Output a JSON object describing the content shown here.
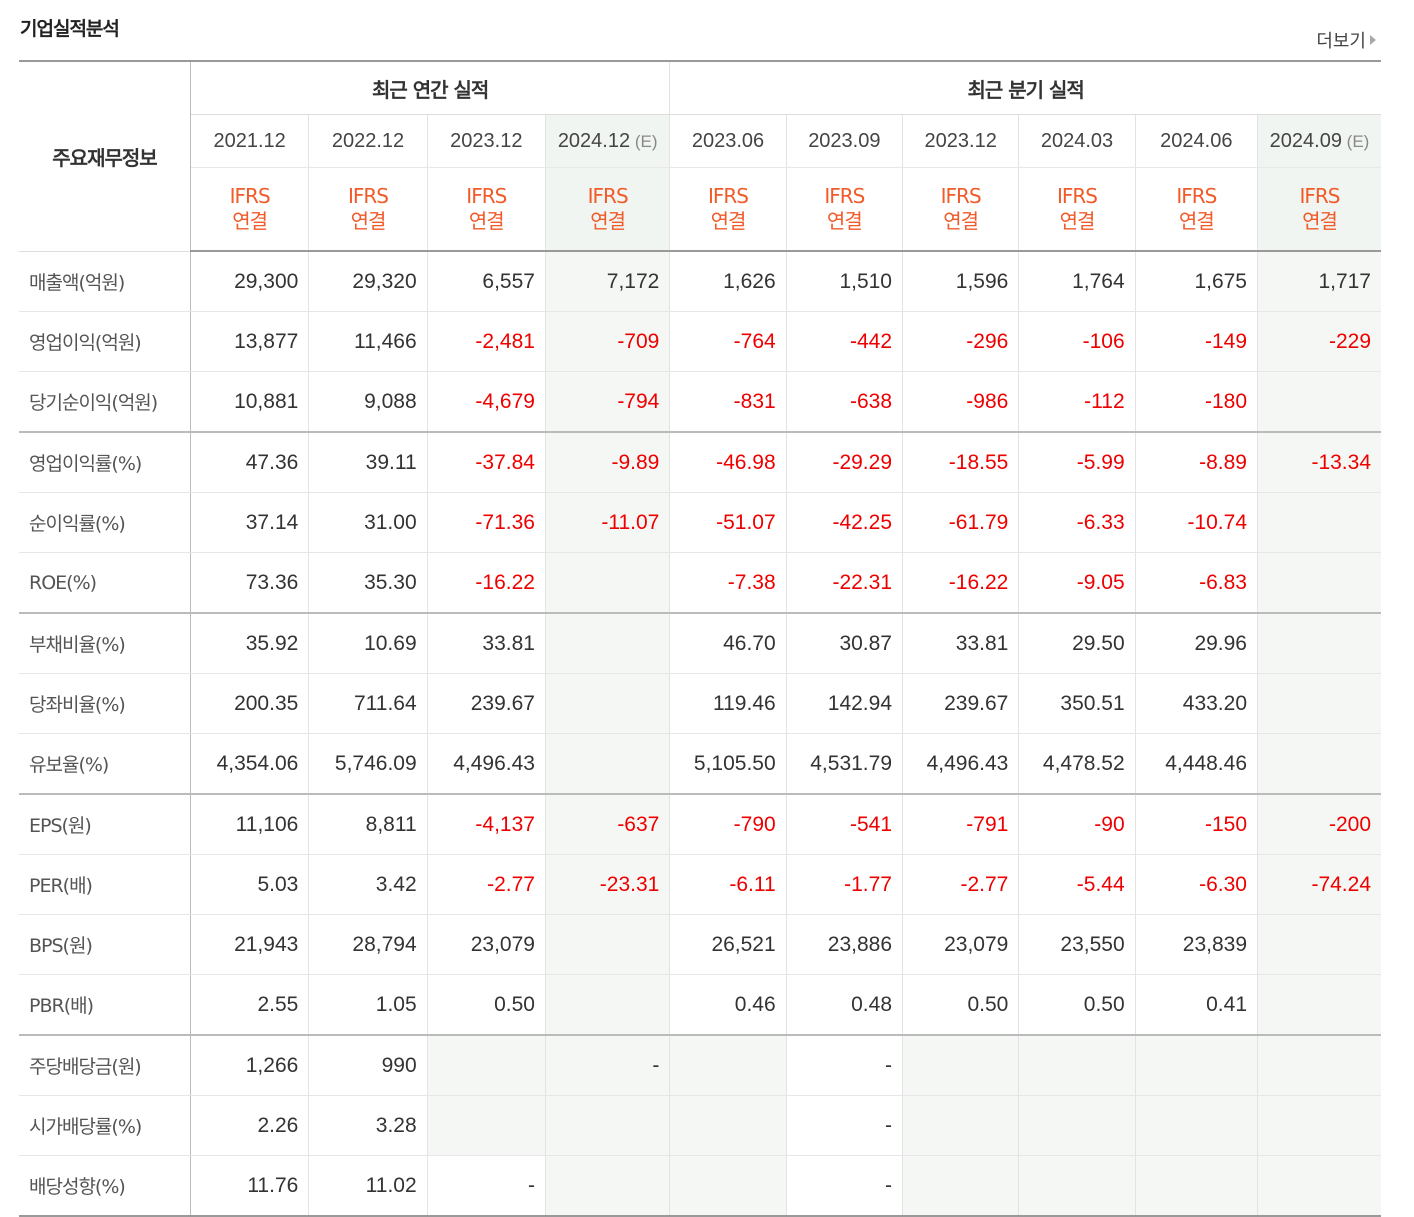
{
  "title": "기업실적분석",
  "more_label": "더보기",
  "header": {
    "row_label": "주요재무정보",
    "annual_group": "최근 연간 실적",
    "quarter_group": "최근 분기 실적",
    "periods": [
      "2021.12",
      "2022.12",
      "2023.12",
      "2024.12",
      "2023.06",
      "2023.09",
      "2023.12",
      "2024.03",
      "2024.06",
      "2024.09"
    ],
    "estimate_mark": "(E)",
    "ifrs_line1": "IFRS",
    "ifrs_line2": "연결"
  },
  "rows": [
    {
      "label": "매출액(억원)",
      "values": [
        "29,300",
        "29,320",
        "6,557",
        "7,172",
        "1,626",
        "1,510",
        "1,596",
        "1,764",
        "1,675",
        "1,717"
      ]
    },
    {
      "label": "영업이익(억원)",
      "values": [
        "13,877",
        "11,466",
        "-2,481",
        "-709",
        "-764",
        "-442",
        "-296",
        "-106",
        "-149",
        "-229"
      ]
    },
    {
      "label": "당기순이익(억원)",
      "values": [
        "10,881",
        "9,088",
        "-4,679",
        "-794",
        "-831",
        "-638",
        "-986",
        "-112",
        "-180",
        ""
      ]
    },
    {
      "label": "영업이익률(%)",
      "values": [
        "47.36",
        "39.11",
        "-37.84",
        "-9.89",
        "-46.98",
        "-29.29",
        "-18.55",
        "-5.99",
        "-8.89",
        "-13.34"
      ]
    },
    {
      "label": "순이익률(%)",
      "values": [
        "37.14",
        "31.00",
        "-71.36",
        "-11.07",
        "-51.07",
        "-42.25",
        "-61.79",
        "-6.33",
        "-10.74",
        ""
      ]
    },
    {
      "label": "ROE(%)",
      "values": [
        "73.36",
        "35.30",
        "-16.22",
        "",
        "-7.38",
        "-22.31",
        "-16.22",
        "-9.05",
        "-6.83",
        ""
      ]
    },
    {
      "label": "부채비율(%)",
      "values": [
        "35.92",
        "10.69",
        "33.81",
        "",
        "46.70",
        "30.87",
        "33.81",
        "29.50",
        "29.96",
        ""
      ]
    },
    {
      "label": "당좌비율(%)",
      "values": [
        "200.35",
        "711.64",
        "239.67",
        "",
        "119.46",
        "142.94",
        "239.67",
        "350.51",
        "433.20",
        ""
      ]
    },
    {
      "label": "유보율(%)",
      "values": [
        "4,354.06",
        "5,746.09",
        "4,496.43",
        "",
        "5,105.50",
        "4,531.79",
        "4,496.43",
        "4,478.52",
        "4,448.46",
        ""
      ]
    },
    {
      "label": "EPS(원)",
      "values": [
        "11,106",
        "8,811",
        "-4,137",
        "-637",
        "-790",
        "-541",
        "-791",
        "-90",
        "-150",
        "-200"
      ]
    },
    {
      "label": "PER(배)",
      "values": [
        "5.03",
        "3.42",
        "-2.77",
        "-23.31",
        "-6.11",
        "-1.77",
        "-2.77",
        "-5.44",
        "-6.30",
        "-74.24"
      ]
    },
    {
      "label": "BPS(원)",
      "values": [
        "21,943",
        "28,794",
        "23,079",
        "",
        "26,521",
        "23,886",
        "23,079",
        "23,550",
        "23,839",
        ""
      ]
    },
    {
      "label": "PBR(배)",
      "values": [
        "2.55",
        "1.05",
        "0.50",
        "",
        "0.46",
        "0.48",
        "0.50",
        "0.50",
        "0.41",
        ""
      ]
    },
    {
      "label": "주당배당금(원)",
      "values": [
        "1,266",
        "990",
        "",
        "-",
        "",
        "-",
        "",
        "",
        "",
        ""
      ]
    },
    {
      "label": "시가배당률(%)",
      "values": [
        "2.26",
        "3.28",
        "",
        "",
        "",
        "-",
        "",
        "",
        "",
        ""
      ]
    },
    {
      "label": "배당성향(%)",
      "values": [
        "11.76",
        "11.02",
        "-",
        "",
        "",
        "-",
        "",
        "",
        "",
        ""
      ]
    }
  ],
  "colors": {
    "ifrs": "#f15a29",
    "negative": "#ee0000",
    "estimate_shade": "#f4f7f4"
  }
}
